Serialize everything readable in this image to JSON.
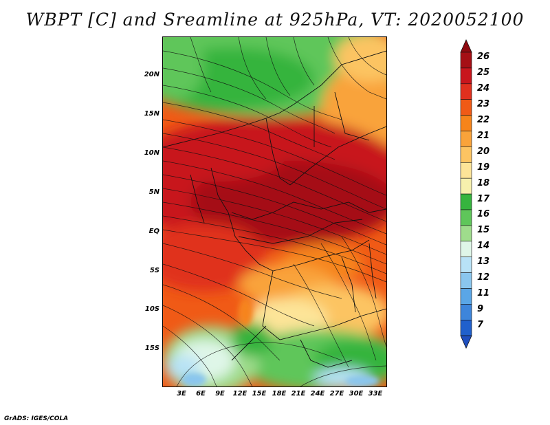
{
  "title": "WBPT [C] and Sreamline at 925hPa, VT: 2020052100",
  "y_ticks": [
    "20N",
    "15N",
    "10N",
    "5N",
    "EQ",
    "5S",
    "10S",
    "15S"
  ],
  "x_ticks": [
    "3E",
    "6E",
    "9E",
    "12E",
    "15E",
    "18E",
    "21E",
    "24E",
    "27E",
    "30E",
    "33E"
  ],
  "colorbar": {
    "labels": [
      "26",
      "25",
      "24",
      "23",
      "22",
      "21",
      "20",
      "19",
      "18",
      "17",
      "16",
      "15",
      "14",
      "13",
      "12",
      "11",
      "9",
      "7"
    ],
    "colors": [
      "#a50f15",
      "#c8161d",
      "#e0301e",
      "#f05a16",
      "#f6841a",
      "#f9a33a",
      "#fcc462",
      "#fde498",
      "#f6f0ad",
      "#36b43e",
      "#5fc65a",
      "#9fdc8c",
      "#dff6e8",
      "#b8e2f6",
      "#8ac6ee",
      "#5aa6e6",
      "#3d85db",
      "#2060cc"
    ],
    "top_arrow_color": "#8f0a10",
    "bottom_arrow_color": "#1f4fbf"
  },
  "credit": "GrADS: IGES/COLA"
}
